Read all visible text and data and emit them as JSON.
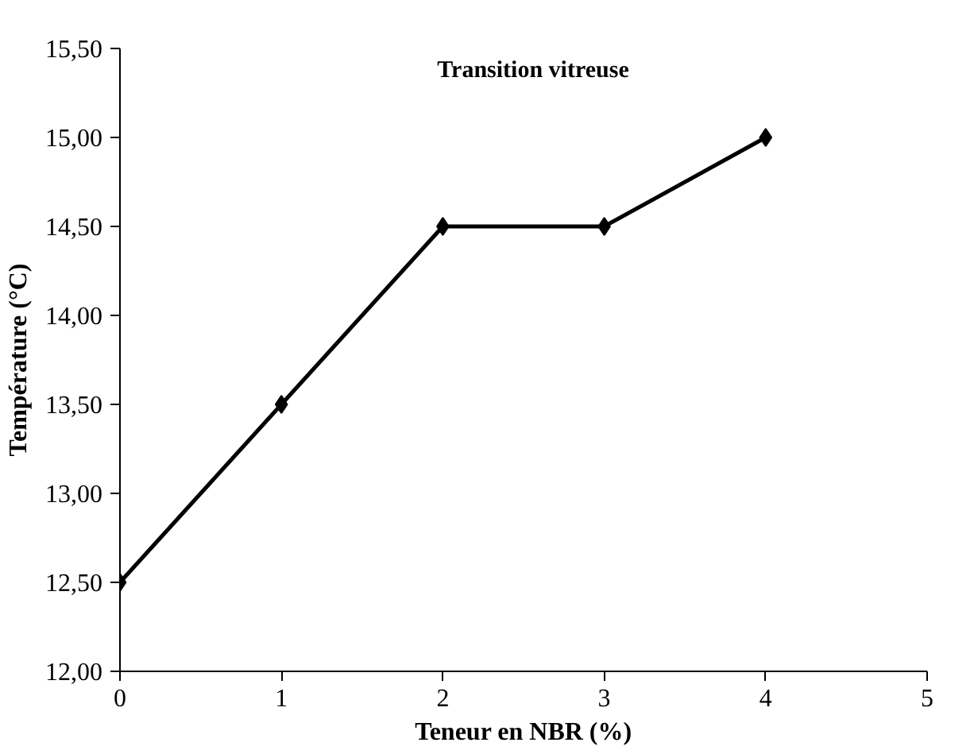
{
  "chart_data": {
    "type": "line",
    "title": "Transition vitreuse",
    "xlabel": "Teneur en NBR (%)",
    "ylabel": "Température (°C)",
    "x": [
      0,
      1,
      2,
      3,
      4
    ],
    "series": [
      {
        "color": "#000000",
        "values": [
          12.5,
          13.5,
          14.5,
          14.5,
          15.0
        ]
      }
    ],
    "xlim": [
      0,
      5
    ],
    "xticks": [
      0,
      1,
      2,
      3,
      4,
      5
    ],
    "ylim": [
      12.0,
      15.5
    ],
    "yticks": [
      {
        "value": 12.0,
        "label": "12,00"
      },
      {
        "value": 12.5,
        "label": "12,50"
      },
      {
        "value": 13.0,
        "label": "13,00"
      },
      {
        "value": 13.5,
        "label": "13,50"
      },
      {
        "value": 14.0,
        "label": "14,00"
      },
      {
        "value": 14.5,
        "label": "14,50"
      },
      {
        "value": 15.0,
        "label": "15,00"
      },
      {
        "value": 15.5,
        "label": "15,50"
      }
    ],
    "grid": false,
    "marker": "diamond",
    "line_style": "solid"
  }
}
